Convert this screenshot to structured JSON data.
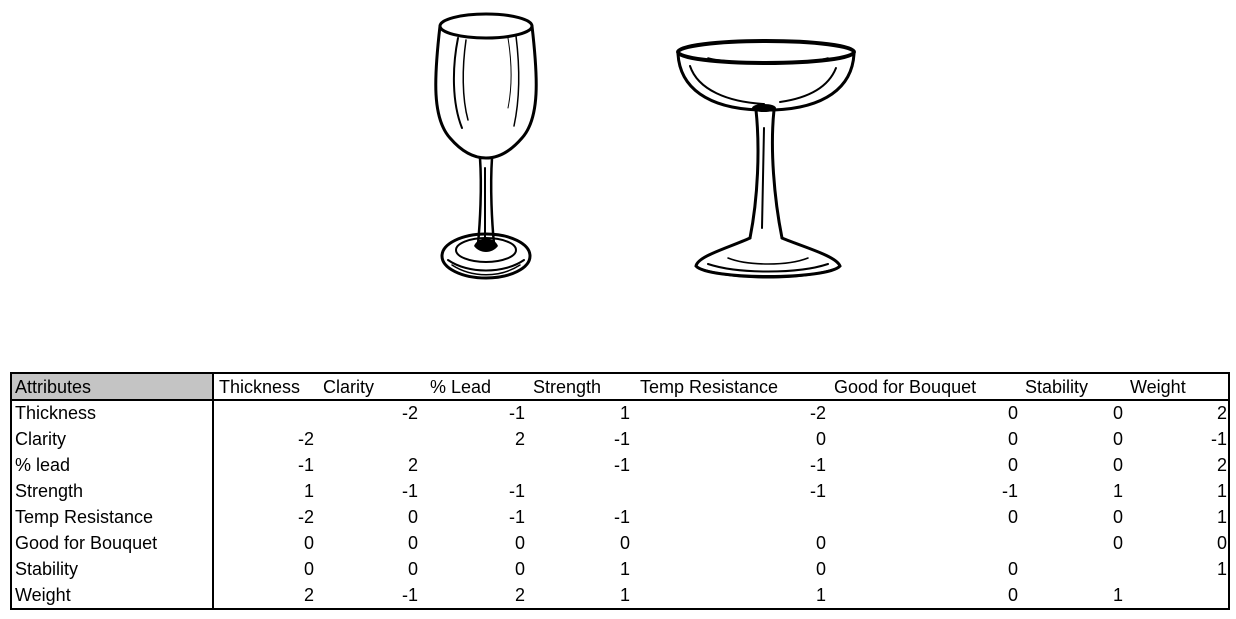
{
  "images": {
    "wine_glass": "wine-glass-illustration",
    "coupe_glass": "coupe-glass-illustration"
  },
  "table": {
    "columns": [
      "Attributes",
      "Thickness",
      "Clarity",
      "% Lead",
      "Strength",
      "Temp Resistance",
      "Good for Bouquet",
      "Stability",
      "Weight"
    ],
    "rows": [
      {
        "label": "Thickness",
        "values": [
          "",
          "-2",
          "-1",
          "1",
          "-2",
          "0",
          "0",
          "2"
        ]
      },
      {
        "label": "Clarity",
        "values": [
          "-2",
          "",
          "2",
          "-1",
          "0",
          "0",
          "0",
          "-1"
        ]
      },
      {
        "label": "% lead",
        "values": [
          "-1",
          "2",
          "",
          "-1",
          "-1",
          "0",
          "0",
          "2"
        ]
      },
      {
        "label": "Strength",
        "values": [
          "1",
          "-1",
          "-1",
          "",
          "-1",
          "-1",
          "1",
          "1"
        ]
      },
      {
        "label": "Temp Resistance",
        "values": [
          "-2",
          "0",
          "-1",
          "-1",
          "",
          "0",
          "0",
          "1"
        ]
      },
      {
        "label": "Good for Bouquet",
        "values": [
          "0",
          "0",
          "0",
          "0",
          "0",
          "",
          "0",
          "0"
        ]
      },
      {
        "label": "Stability",
        "values": [
          "0",
          "0",
          "0",
          "1",
          "0",
          "0",
          "",
          "1"
        ]
      },
      {
        "label": "Weight",
        "values": [
          "2",
          "-1",
          "2",
          "1",
          "1",
          "0",
          "1",
          ""
        ]
      }
    ]
  }
}
